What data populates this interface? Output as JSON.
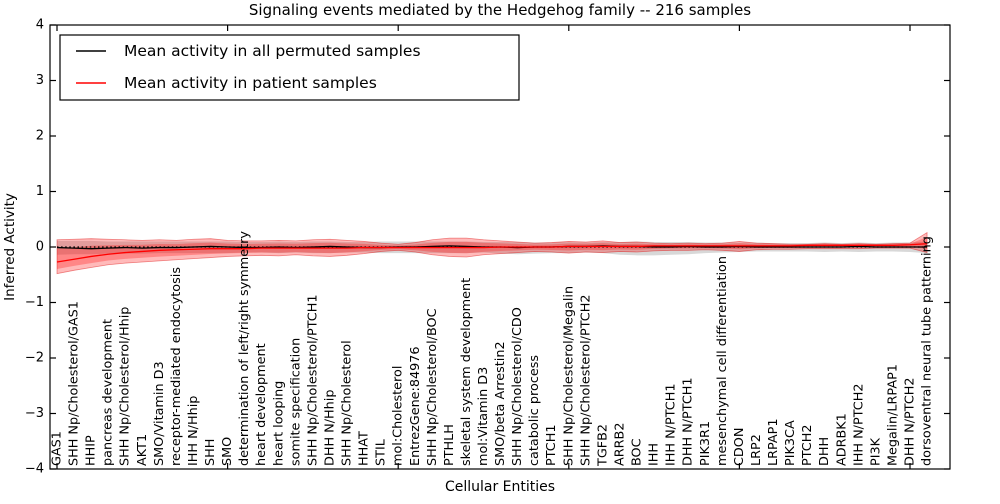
{
  "chart_data": {
    "type": "line",
    "title": "Signaling events mediated by the Hedgehog family -- 216 samples",
    "xlabel": "Cellular Entities",
    "ylabel": "Inferred Activity",
    "ylim": [
      -4,
      4
    ],
    "yticks": [
      4,
      3,
      2,
      1,
      0,
      -1,
      -2,
      -3,
      -4
    ],
    "ytick_labels": [
      "4",
      "3",
      "2",
      "1",
      "0",
      "−1",
      "−2",
      "−3",
      "−4"
    ],
    "xtick_indices": [
      0,
      10,
      20,
      30,
      40,
      50
    ],
    "grid": false,
    "legend_position": "upper left",
    "categories": [
      "GAS1",
      "SHH Np/Cholesterol/GAS1",
      "HHIP",
      "pancreas development",
      "SHH Np/Cholesterol/Hhip",
      "AKT1",
      "SMO/Vitamin D3",
      "receptor-mediated endocytosis",
      "IHH N/Hhip",
      "SHH",
      "SMO",
      "determination of left/right symmetry",
      "heart development",
      "heart looping",
      "somite specification",
      "SHH Np/Cholesterol/PTCH1",
      "DHH N/Hhip",
      "SHH Np/Cholesterol",
      "HHAT",
      "STIL",
      "mol:Cholesterol",
      "EntrezGene:84976",
      "SHH Np/Cholesterol/BOC",
      "PTHLH",
      "skeletal system development",
      "mol:Vitamin D3",
      "SMO/beta Arrestin2",
      "SHH Np/Cholesterol/CDO",
      "catabolic process",
      "PTCH1",
      "SHH Np/Cholesterol/Megalin",
      "SHH Np/Cholesterol/PTCH2",
      "TGFB2",
      "ARRB2",
      "BOC",
      "IHH",
      "IHH N/PTCH1",
      "DHH N/PTCH1",
      "PIK3R1",
      "mesenchymal cell differentiation",
      "CDON",
      "LRP2",
      "LRPAP1",
      "PIK3CA",
      "PTCH2",
      "DHH",
      "ADRBK1",
      "IHH N/PTCH2",
      "PI3K",
      "Megalin/LRPAP1",
      "DHH N/PTCH2",
      "dorsoventral neural tube patterning"
    ],
    "series": [
      {
        "name": "Mean activity in all permuted samples",
        "color": "#000000",
        "line_style": "solid",
        "values": [
          -0.01,
          -0.02,
          -0.03,
          -0.02,
          -0.01,
          -0.02,
          -0.01,
          -0.01,
          0.0,
          0.01,
          0.0,
          -0.01,
          -0.01,
          0.0,
          -0.01,
          0.0,
          0.01,
          0.0,
          -0.01,
          -0.01,
          0.0,
          0.0,
          0.01,
          0.02,
          0.01,
          0.0,
          0.0,
          -0.01,
          0.0,
          0.0,
          0.01,
          0.01,
          0.02,
          0.01,
          0.01,
          0.0,
          0.0,
          0.01,
          0.0,
          0.0,
          0.01,
          0.0,
          0.0,
          0.0,
          0.0,
          0.0,
          0.0,
          0.01,
          0.0,
          0.0,
          0.0,
          0.0
        ]
      },
      {
        "name": "Mean activity in patient samples",
        "color": "#ff0000",
        "line_style": "solid",
        "values": [
          -0.27,
          -0.22,
          -0.17,
          -0.13,
          -0.1,
          -0.08,
          -0.06,
          -0.05,
          -0.04,
          -0.03,
          -0.03,
          -0.03,
          -0.02,
          -0.02,
          -0.02,
          -0.02,
          -0.02,
          -0.02,
          -0.01,
          -0.01,
          -0.01,
          -0.01,
          -0.01,
          -0.01,
          -0.01,
          -0.01,
          0.0,
          0.0,
          0.0,
          0.0,
          0.01,
          0.01,
          0.01,
          0.01,
          0.01,
          0.02,
          0.02,
          0.02,
          0.02,
          0.02,
          0.02,
          0.02,
          0.02,
          0.02,
          0.03,
          0.03,
          0.03,
          0.03,
          0.03,
          0.03,
          0.04,
          0.06
        ]
      }
    ],
    "reference_line": {
      "y": 0,
      "style": "dotted",
      "color": "#000000"
    },
    "bands": [
      {
        "name": "permuted-sample-spread",
        "color": "#999999",
        "opacity": 0.38,
        "top": [
          0.11,
          0.11,
          0.11,
          0.1,
          0.1,
          0.1,
          0.1,
          0.1,
          0.1,
          0.1,
          0.1,
          0.09,
          0.09,
          0.1,
          0.09,
          0.1,
          0.1,
          0.09,
          0.09,
          0.1,
          0.1,
          0.1,
          0.1,
          0.1,
          0.1,
          0.09,
          0.09,
          0.09,
          0.08,
          0.08,
          0.09,
          0.08,
          0.09,
          0.09,
          0.1,
          0.09,
          0.09,
          0.09,
          0.08,
          0.08,
          0.08,
          0.08,
          0.07,
          0.07,
          0.07,
          0.08,
          0.07,
          0.08,
          0.07,
          0.08,
          0.08,
          0.1
        ],
        "bottom": [
          -0.14,
          -0.13,
          -0.13,
          -0.12,
          -0.12,
          -0.12,
          -0.11,
          -0.11,
          -0.11,
          -0.11,
          -0.11,
          -0.1,
          -0.1,
          -0.11,
          -0.1,
          -0.11,
          -0.11,
          -0.1,
          -0.1,
          -0.11,
          -0.11,
          -0.11,
          -0.11,
          -0.11,
          -0.11,
          -0.1,
          -0.12,
          -0.13,
          -0.12,
          -0.11,
          -0.11,
          -0.1,
          -0.11,
          -0.14,
          -0.15,
          -0.15,
          -0.14,
          -0.13,
          -0.11,
          -0.1,
          -0.09,
          -0.08,
          -0.08,
          -0.08,
          -0.08,
          -0.09,
          -0.08,
          -0.09,
          -0.08,
          -0.08,
          -0.09,
          -0.11
        ]
      },
      {
        "name": "patient-sample-spread",
        "color": "#ff0000",
        "opacity": 0.27,
        "inner_shrink": 0.6,
        "inner_opacity": 0.27,
        "top": [
          0.13,
          0.14,
          0.15,
          0.14,
          0.13,
          0.12,
          0.13,
          0.12,
          0.14,
          0.15,
          0.12,
          0.11,
          0.11,
          0.12,
          0.11,
          0.13,
          0.14,
          0.12,
          0.1,
          0.07,
          0.05,
          0.08,
          0.13,
          0.16,
          0.16,
          0.13,
          0.11,
          0.09,
          0.07,
          0.08,
          0.1,
          0.09,
          0.11,
          0.08,
          0.09,
          0.07,
          0.06,
          0.07,
          0.06,
          0.07,
          0.1,
          0.07,
          0.06,
          0.05,
          0.05,
          0.06,
          0.05,
          0.06,
          0.05,
          0.06,
          0.07,
          0.26
        ],
        "bottom": [
          -0.48,
          -0.42,
          -0.37,
          -0.32,
          -0.29,
          -0.27,
          -0.25,
          -0.23,
          -0.21,
          -0.19,
          -0.17,
          -0.16,
          -0.15,
          -0.16,
          -0.14,
          -0.16,
          -0.17,
          -0.15,
          -0.12,
          -0.08,
          -0.06,
          -0.09,
          -0.14,
          -0.17,
          -0.18,
          -0.14,
          -0.12,
          -0.1,
          -0.08,
          -0.09,
          -0.11,
          -0.09,
          -0.1,
          -0.08,
          -0.09,
          -0.07,
          -0.06,
          -0.06,
          -0.05,
          -0.06,
          -0.08,
          -0.05,
          -0.04,
          -0.04,
          -0.03,
          -0.03,
          -0.03,
          -0.03,
          -0.02,
          -0.02,
          -0.02,
          -0.1
        ]
      }
    ]
  }
}
